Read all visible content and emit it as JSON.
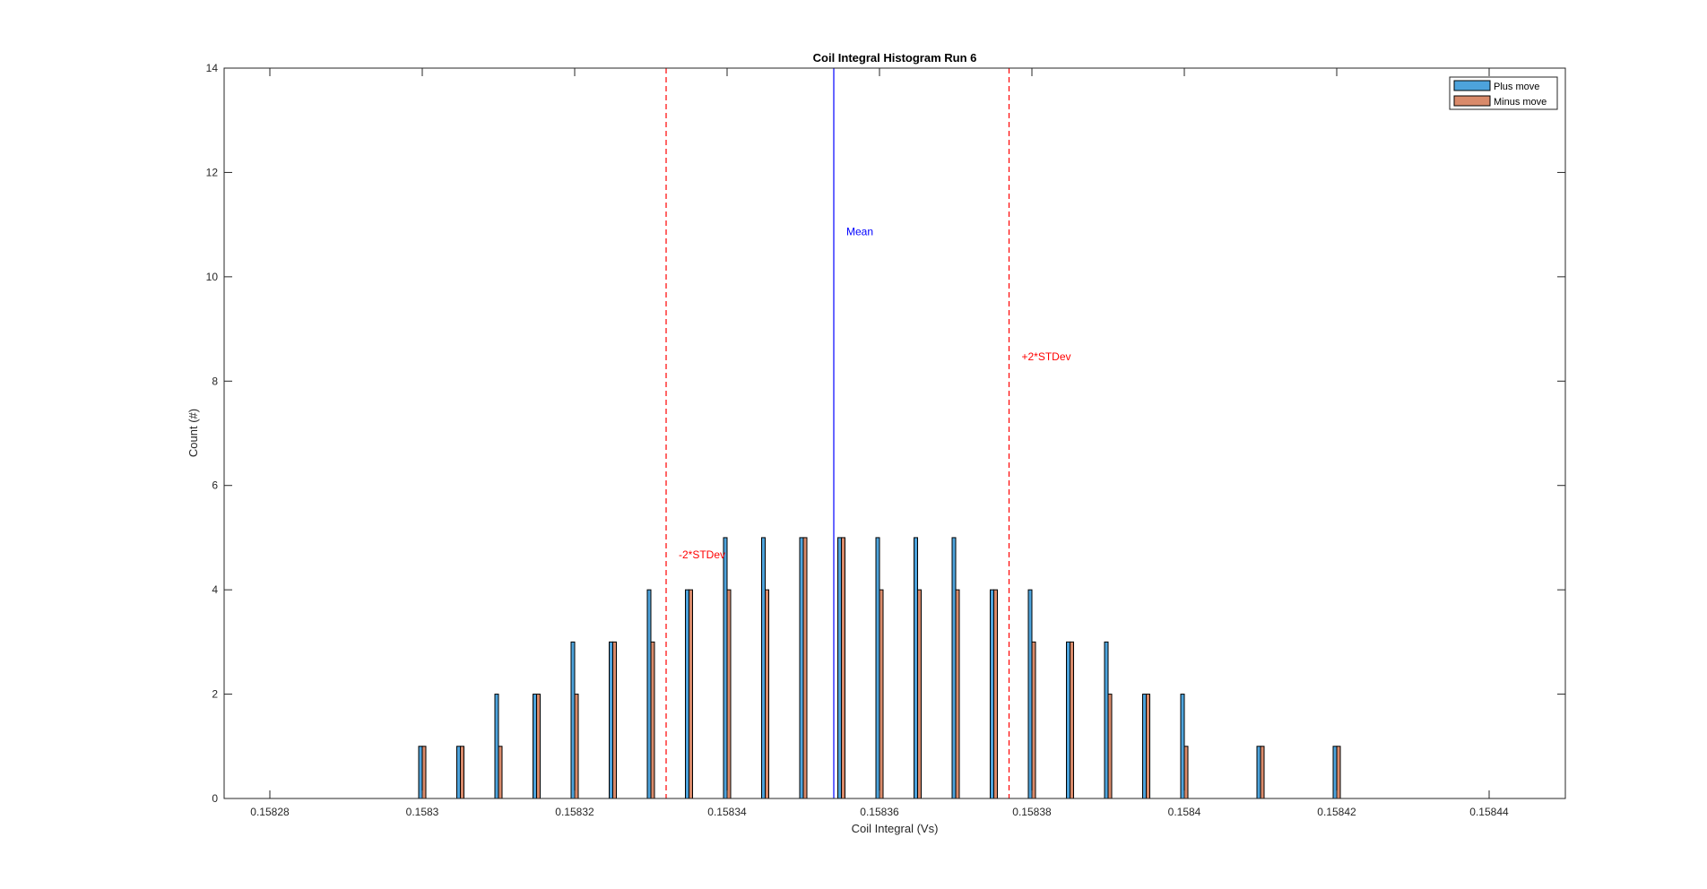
{
  "chart_data": {
    "type": "bar",
    "title": "Coil Integral Histogram Run 6",
    "xlabel": "Coil Integral (Vs)",
    "ylabel": "Count (#)",
    "xlim": [
      0.158274,
      0.15845
    ],
    "ylim": [
      0,
      14
    ],
    "xticks": [
      0.15828,
      0.1583,
      0.15832,
      0.15834,
      0.15836,
      0.15838,
      0.1584,
      0.15842,
      0.15844
    ],
    "xtick_labels": [
      "0.15828",
      "0.1583",
      "0.15832",
      "0.15834",
      "0.15836",
      "0.15838",
      "0.1584",
      "0.15842",
      "0.15844"
    ],
    "yticks": [
      0,
      2,
      4,
      6,
      8,
      10,
      12,
      14
    ],
    "ytick_labels": [
      "0",
      "2",
      "4",
      "6",
      "8",
      "10",
      "12",
      "14"
    ],
    "grid": false,
    "legend_position": "top-right",
    "series": [
      {
        "name": "Plus move",
        "color": "#4DA3DC",
        "x": [
          0.15828,
          0.15829,
          0.1583,
          0.158305,
          0.15831,
          0.158315,
          0.15832,
          0.158325,
          0.15833,
          0.158335,
          0.15834,
          0.158345,
          0.15835,
          0.158355,
          0.15836,
          0.158365,
          0.15837,
          0.158375,
          0.15838,
          0.158385,
          0.15839,
          0.158395,
          0.1584,
          0.15841,
          0.15842,
          0.15843,
          0.15844
        ],
        "values": [
          0,
          0,
          1,
          1,
          2,
          2,
          3,
          3,
          4,
          4,
          5,
          5,
          5,
          5,
          5,
          5,
          5,
          4,
          4,
          3,
          3,
          2,
          2,
          1,
          1,
          0,
          0
        ]
      },
      {
        "name": "Minus move",
        "color": "#D98A6A",
        "x": [
          0.15828,
          0.15829,
          0.1583,
          0.158305,
          0.15831,
          0.158315,
          0.15832,
          0.158325,
          0.15833,
          0.158335,
          0.15834,
          0.158345,
          0.15835,
          0.158355,
          0.15836,
          0.158365,
          0.15837,
          0.158375,
          0.15838,
          0.158385,
          0.15839,
          0.158395,
          0.1584,
          0.15841,
          0.15842,
          0.15843,
          0.15844
        ],
        "values": [
          0,
          0,
          1,
          1,
          1,
          2,
          2,
          3,
          3,
          4,
          4,
          4,
          5,
          5,
          4,
          4,
          4,
          4,
          3,
          3,
          2,
          2,
          1,
          1,
          1,
          0,
          0
        ]
      }
    ],
    "outline_color": "#000000",
    "annotations": [
      {
        "label": "Mean",
        "x": 0.158354,
        "color": "#0000FF",
        "style": "solid",
        "label_y": 10.8
      },
      {
        "label": "-2*STDev",
        "x": 0.158332,
        "color": "#FF0000",
        "style": "dashed",
        "label_y": 4.6
      },
      {
        "label": "+2*STDev",
        "x": 0.158377,
        "color": "#FF0000",
        "style": "dashed",
        "label_y": 8.4
      }
    ]
  }
}
